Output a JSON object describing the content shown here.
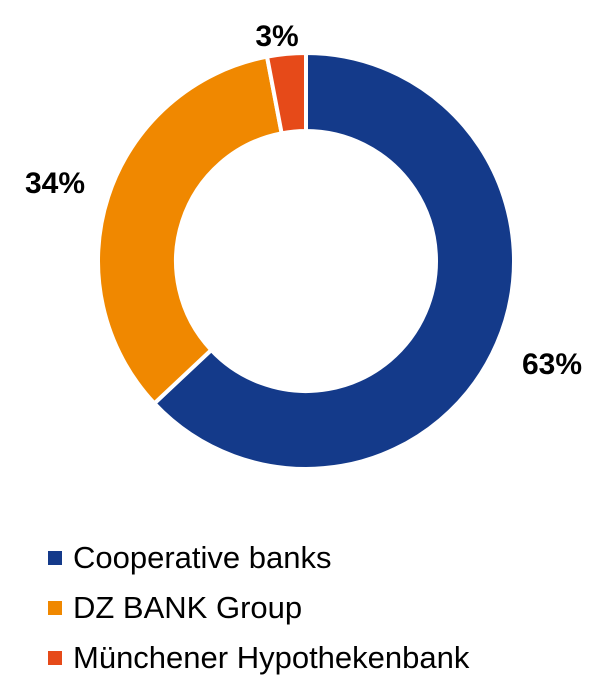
{
  "chart_data": {
    "type": "pie",
    "variant": "donut",
    "categories": [
      "Cooperative banks",
      "DZ BANK Group",
      "Münchener Hypothekenbank"
    ],
    "values": [
      63,
      34,
      3
    ],
    "data_labels": [
      "63%",
      "34%",
      "3%"
    ],
    "colors": [
      "#143a8a",
      "#f08800",
      "#e64a19"
    ],
    "legend_position": "bottom",
    "legend": [
      {
        "label": "Cooperative banks",
        "color": "#143a8a"
      },
      {
        "label": "DZ BANK Group",
        "color": "#f08800"
      },
      {
        "label": "Münchener Hypothekenbank",
        "color": "#e64a19"
      }
    ]
  }
}
